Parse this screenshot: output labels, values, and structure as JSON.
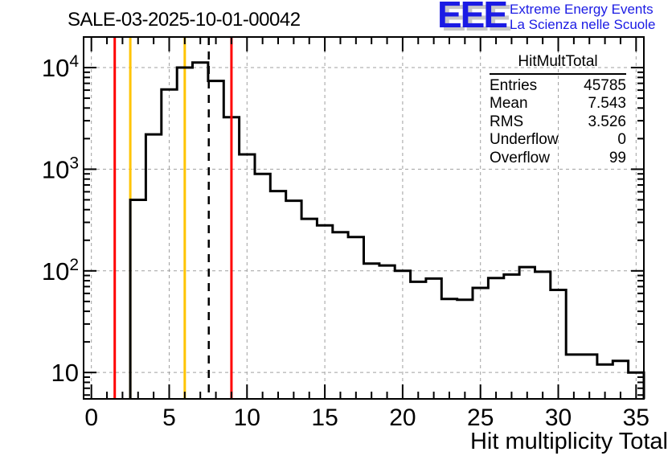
{
  "title": "SALE-03-2025-10-01-00042",
  "logo": {
    "acronym": "EEE",
    "line1": "Extreme Energy Events",
    "line2": "La Scienza nelle Scuole",
    "color": "#1b1be4",
    "shadow_color": "#c8c8c8"
  },
  "stats": {
    "title": "HitMultTotal",
    "rows": [
      {
        "label": "Entries",
        "value": "45785"
      },
      {
        "label": "Mean",
        "value": "7.543"
      },
      {
        "label": "RMS",
        "value": "3.526"
      },
      {
        "label": "Underflow",
        "value": "0"
      },
      {
        "label": "Overflow",
        "value": "99"
      }
    ]
  },
  "chart_data": {
    "type": "bar",
    "style": "step-histogram",
    "title": "SALE-03-2025-10-01-00042",
    "xlabel": "Hit multiplicity Total",
    "ylabel": "",
    "x_range": [
      -0.5,
      35.5
    ],
    "y_scale": "log",
    "y_range": [
      5.5,
      20000
    ],
    "grid": "dashed",
    "grid_color": "#a0a0a0",
    "x_major_ticks": [
      0,
      5,
      10,
      15,
      20,
      25,
      30,
      35
    ],
    "y_major_ticks": [
      10,
      100,
      1000,
      10000
    ],
    "bin_centers": [
      0,
      1,
      2,
      3,
      4,
      5,
      6,
      7,
      8,
      9,
      10,
      11,
      12,
      13,
      14,
      15,
      16,
      17,
      18,
      19,
      20,
      21,
      22,
      23,
      24,
      25,
      26,
      27,
      28,
      29,
      30,
      31,
      32,
      33,
      34,
      35
    ],
    "values": [
      0,
      0,
      0,
      500,
      2200,
      6100,
      10000,
      11200,
      7400,
      3250,
      1400,
      900,
      610,
      490,
      325,
      280,
      240,
      215,
      118,
      113,
      100,
      78,
      84,
      53,
      52,
      68,
      85,
      92,
      109,
      98,
      65,
      15,
      15,
      12,
      13,
      10
    ],
    "line_color": "#000000",
    "marker_lines": [
      {
        "x": 1.5,
        "color": "#ff0000",
        "style": "solid",
        "z": "front"
      },
      {
        "x": 2.5,
        "color": "#ffc400",
        "style": "solid",
        "z": "back"
      },
      {
        "x": 6.0,
        "color": "#ffc400",
        "style": "solid",
        "z": "back"
      },
      {
        "x": 7.543,
        "color": "#000000",
        "style": "dashed",
        "z": "front"
      },
      {
        "x": 9.0,
        "color": "#ff0000",
        "style": "solid",
        "z": "front"
      }
    ]
  }
}
